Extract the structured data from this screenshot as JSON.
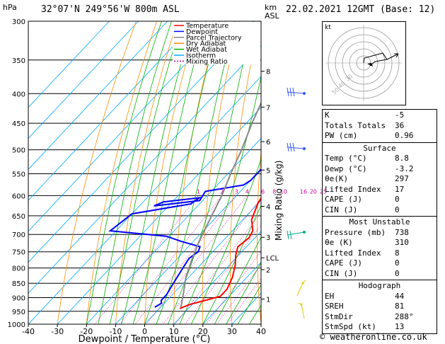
{
  "header": {
    "location": "32°07'N 249°56'W 800m ASL",
    "datetime": "22.02.2021 12GMT (Base: 12)"
  },
  "footer": {
    "credit": "© weatheronline.co.uk"
  },
  "skewt": {
    "ylabel_left": "hPa",
    "ylabel_km": "km",
    "ylabel_asl": "ASL",
    "xlabel": "Dewpoint / Temperature (°C)",
    "mixing_axis_label": "Mixing Ratio (g/kg)",
    "pressure_levels": [
      300,
      350,
      400,
      450,
      500,
      550,
      600,
      650,
      700,
      750,
      800,
      850,
      900,
      950,
      1000
    ],
    "temp_ticks": [
      -40,
      -30,
      -20,
      -10,
      0,
      10,
      20,
      30,
      40
    ],
    "km_ticks": [
      {
        "label": "8",
        "p": 366
      },
      {
        "label": "7",
        "p": 422
      },
      {
        "label": "6",
        "p": 484
      },
      {
        "label": "5",
        "p": 542
      },
      {
        "label": "4",
        "p": 626
      },
      {
        "label": "3",
        "p": 708
      },
      {
        "label": "LCL",
        "p": 768
      },
      {
        "label": "2",
        "p": 805
      },
      {
        "label": "1",
        "p": 905
      }
    ],
    "mixing_ratio_labels": [
      "1",
      "2",
      "3",
      "4",
      "6",
      "8",
      "10",
      "16",
      "20",
      "25"
    ],
    "legend": [
      {
        "label": "Temperature",
        "color": "#ff0000",
        "dash": ""
      },
      {
        "label": "Dewpoint",
        "color": "#0000ff",
        "dash": ""
      },
      {
        "label": "Parcel Trajectory",
        "color": "#888888",
        "dash": ""
      },
      {
        "label": "Dry Adiabat",
        "color": "#ff8c00",
        "dash": ""
      },
      {
        "label": "Wet Adiabat",
        "color": "#00b000",
        "dash": ""
      },
      {
        "label": "Isotherm",
        "color": "#00aaff",
        "dash": ""
      },
      {
        "label": "Mixing Ratio",
        "color": "#cc0099",
        "dash": "2,2"
      }
    ]
  },
  "chart_data": {
    "type": "line",
    "title": "",
    "xlabel": "Dewpoint / Temperature (°C)",
    "ylabel": "hPa",
    "xlim": [
      -40,
      40
    ],
    "ylim": [
      1000,
      300
    ],
    "series": [
      {
        "name": "Temperature",
        "color": "#ff0000",
        "points": [
          [
            940,
            7
          ],
          [
            925,
            9
          ],
          [
            910,
            13
          ],
          [
            895,
            17
          ],
          [
            870,
            17
          ],
          [
            830,
            15
          ],
          [
            790,
            12
          ],
          [
            760,
            9
          ],
          [
            735,
            7
          ],
          [
            710,
            8
          ],
          [
            690,
            7
          ],
          [
            660,
            3
          ],
          [
            620,
            0
          ],
          [
            600,
            -1
          ],
          [
            570,
            -4
          ],
          [
            540,
            -7
          ],
          [
            510,
            -10
          ],
          [
            480,
            -14
          ],
          [
            450,
            -18
          ],
          [
            420,
            -21
          ],
          [
            400,
            -24
          ],
          [
            380,
            -27
          ],
          [
            360,
            -30
          ],
          [
            340,
            -34
          ],
          [
            320,
            -37
          ],
          [
            300,
            -40
          ]
        ]
      },
      {
        "name": "Dewpoint",
        "color": "#0000ff",
        "points": [
          [
            935,
            -2
          ],
          [
            920,
            -1
          ],
          [
            910,
            -2
          ],
          [
            890,
            -2
          ],
          [
            860,
            -3
          ],
          [
            830,
            -4
          ],
          [
            800,
            -5
          ],
          [
            770,
            -6
          ],
          [
            750,
            -5
          ],
          [
            735,
            -6
          ],
          [
            720,
            -14
          ],
          [
            705,
            -21
          ],
          [
            690,
            -42
          ],
          [
            645,
            -40
          ],
          [
            620,
            -23
          ],
          [
            605,
            -22
          ],
          [
            615,
            -33
          ],
          [
            625,
            -35
          ],
          [
            612,
            -21
          ],
          [
            590,
            -22
          ],
          [
            575,
            -11
          ],
          [
            565,
            -10
          ],
          [
            520,
            -10
          ],
          [
            500,
            -12
          ],
          [
            480,
            -13
          ],
          [
            450,
            -16
          ],
          [
            440,
            -22
          ],
          [
            420,
            -27
          ],
          [
            400,
            -30
          ],
          [
            380,
            -33
          ],
          [
            360,
            -37
          ],
          [
            335,
            -40
          ],
          [
            310,
            -43
          ],
          [
            300,
            -44
          ]
        ]
      },
      {
        "name": "Parcel Trajectory",
        "color": "#888888",
        "points": [
          [
            935,
            7
          ],
          [
            880,
            3
          ],
          [
            830,
            -1
          ],
          [
            768,
            -5
          ],
          [
            720,
            -8
          ],
          [
            650,
            -12
          ],
          [
            600,
            -15
          ],
          [
            550,
            -19
          ],
          [
            500,
            -23
          ],
          [
            450,
            -28
          ],
          [
            400,
            -33
          ],
          [
            350,
            -39
          ],
          [
            300,
            -46
          ]
        ]
      }
    ]
  },
  "hodograph": {
    "label": "kt",
    "ring_labels": [
      "30",
      "40",
      "50"
    ]
  },
  "indices": {
    "basic": [
      {
        "label": "K",
        "value": "-5"
      },
      {
        "label": "Totals Totals",
        "value": "36"
      },
      {
        "label": "PW (cm)",
        "value": "0.96"
      }
    ],
    "surface": {
      "title": "Surface",
      "rows": [
        {
          "label": "Temp (°C)",
          "value": "8.8"
        },
        {
          "label": "Dewp (°C)",
          "value": "-3.2"
        },
        {
          "label": "θe(K)",
          "value": "297"
        },
        {
          "label": "Lifted Index",
          "value": "17"
        },
        {
          "label": "CAPE (J)",
          "value": "0"
        },
        {
          "label": "CIN (J)",
          "value": "0"
        }
      ]
    },
    "most_unstable": {
      "title": "Most Unstable",
      "rows": [
        {
          "label": "Pressure (mb)",
          "value": "738"
        },
        {
          "label": "θe (K)",
          "value": "310"
        },
        {
          "label": "Lifted Index",
          "value": "8"
        },
        {
          "label": "CAPE (J)",
          "value": "0"
        },
        {
          "label": "CIN (J)",
          "value": "0"
        }
      ]
    },
    "hodograph": {
      "title": "Hodograph",
      "rows": [
        {
          "label": "EH",
          "value": "44"
        },
        {
          "label": "SREH",
          "value": "81"
        },
        {
          "label": "StmDir",
          "value": "288°"
        },
        {
          "label": "StmSpd (kt)",
          "value": "13"
        }
      ]
    }
  }
}
